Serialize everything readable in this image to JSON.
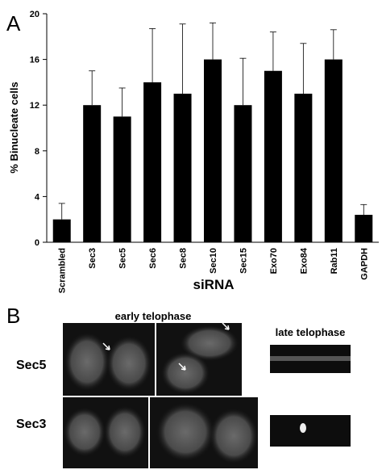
{
  "chart_data": {
    "type": "bar",
    "panel_label": "A",
    "categories": [
      "Scrambled",
      "Sec3",
      "Sec5",
      "Sec6",
      "Sec8",
      "Sec10",
      "Sec15",
      "Exo70",
      "Exo84",
      "Rab11",
      "GAPDH"
    ],
    "values": [
      2,
      12,
      11,
      14,
      13,
      16,
      12,
      15,
      13,
      16,
      2.4
    ],
    "errors": [
      1.4,
      3,
      2.5,
      4.7,
      6.1,
      3.2,
      4.1,
      3.4,
      4.4,
      2.6,
      0.9
    ],
    "color": "#000000",
    "ylabel": "% Binucleate cells",
    "xlabel": "siRNA",
    "ylim": [
      0,
      20
    ],
    "yticks": [
      0,
      4,
      8,
      12,
      16,
      20
    ],
    "grid": false
  },
  "panel_b": {
    "label": "B",
    "column_labels": [
      "early telophase",
      "late telophase"
    ],
    "row_labels": [
      "Sec5",
      "Sec3"
    ]
  }
}
